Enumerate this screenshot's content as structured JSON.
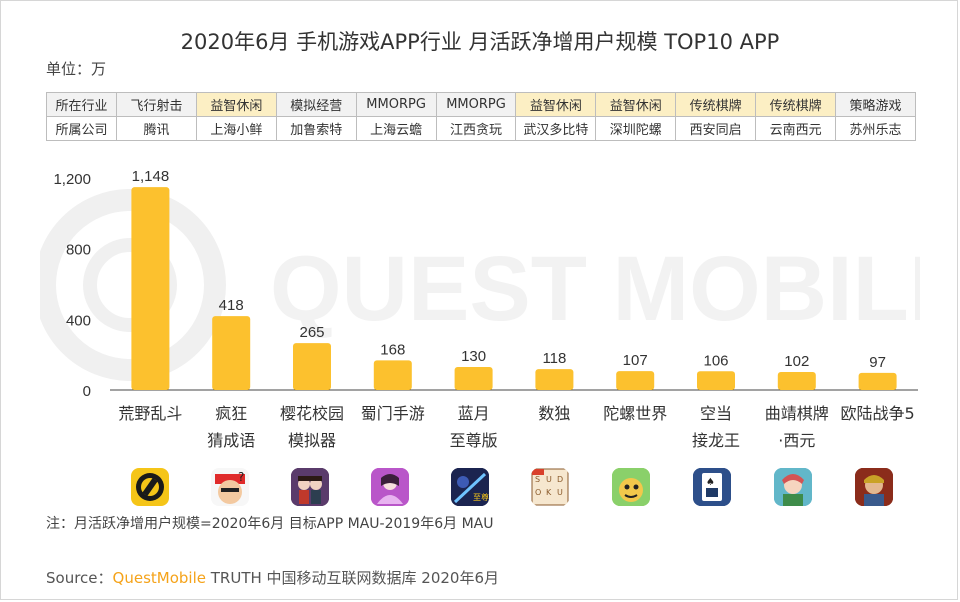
{
  "title": "2020年6月 手机游戏APP行业 月活跃净增用户规模 TOP10 APP",
  "unit_label": "单位：万",
  "table": {
    "row_headers": [
      "所在行业",
      "所属公司"
    ],
    "industries": [
      "飞行射击",
      "益智休闲",
      "模拟经营",
      "MMORPG",
      "MMORPG",
      "益智休闲",
      "益智休闲",
      "传统棋牌",
      "传统棋牌",
      "策略游戏"
    ],
    "companies": [
      "腾讯",
      "上海小鲜",
      "加鲁索特",
      "上海云蟾",
      "江西贪玩",
      "武汉多比特",
      "深圳陀螺",
      "西安同启",
      "云南西元",
      "苏州乐志"
    ]
  },
  "chart_data": {
    "type": "bar",
    "categories": [
      "荒野乱斗",
      "疯狂\n猜成语",
      "樱花校园\n模拟器",
      "蜀门手游",
      "蓝月\n至尊版",
      "数独",
      "陀螺世界",
      "空当\n接龙王",
      "曲靖棋牌\n·西元",
      "欧陆战争5"
    ],
    "values": [
      1148,
      418,
      265,
      168,
      130,
      118,
      107,
      106,
      102,
      97
    ],
    "value_labels": [
      "1,148",
      "418",
      "265",
      "168",
      "130",
      "118",
      "107",
      "106",
      "102",
      "97"
    ],
    "y_ticks": [
      "1,200",
      "800",
      "400",
      "0"
    ],
    "y_tick_values": [
      1200,
      800,
      400,
      0
    ],
    "ylim": [
      0,
      1200
    ],
    "bar_color": "#fcc12e",
    "grid": false
  },
  "icons": [
    "brawl-stars-app-icon",
    "crazy-idiom-app-icon",
    "sakura-school-app-icon",
    "shumen-app-icon",
    "blue-moon-app-icon",
    "sudoku-app-icon",
    "gyro-world-app-icon",
    "solitaire-app-icon",
    "qujing-chess-app-icon",
    "european-war-5-app-icon"
  ],
  "watermark": "QUEST MOBILE",
  "note": "注：月活跃净增用户规模=2020年6月 目标APP MAU-2019年6月 MAU",
  "source": {
    "prefix": "Source：",
    "brand": "QuestMobile",
    "suffix": " TRUTH 中国移动互联网数据库 2020年6月"
  },
  "colors": {
    "accent": "#fcc12e",
    "highlight_cell": "#fcefc4",
    "brand": "#f5a31a"
  }
}
